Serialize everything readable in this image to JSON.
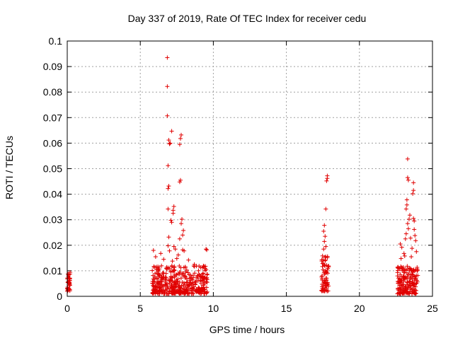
{
  "chart_data": {
    "type": "scatter",
    "title": "Day 337 of 2019, Rate Of TEC Index for receiver cedu",
    "xlabel": "GPS time / hours",
    "ylabel": "ROTI / TECUs",
    "xlim": [
      0,
      25
    ],
    "ylim": [
      0,
      0.1
    ],
    "x_ticks": [
      "0",
      "5",
      "10",
      "15",
      "20",
      "25"
    ],
    "y_ticks": [
      "0",
      "0.01",
      "0.02",
      "0.03",
      "0.04",
      "0.05",
      "0.06",
      "0.07",
      "0.08",
      "0.09",
      "0.1"
    ],
    "grid": true,
    "legend": "none",
    "marker": "+",
    "marker_color": "#e00000",
    "clusters": [
      {
        "x_range": [
          0.0,
          0.2
        ],
        "y_range": [
          0.002,
          0.0095
        ],
        "count": 40
      },
      {
        "x_range": [
          5.8,
          9.6
        ],
        "y_range": [
          0.001,
          0.012
        ],
        "count": 420
      },
      {
        "x_range": [
          17.4,
          17.9
        ],
        "y_range": [
          0.002,
          0.016
        ],
        "count": 70
      },
      {
        "x_range": [
          22.6,
          24.0
        ],
        "y_range": [
          0.001,
          0.012
        ],
        "count": 180
      }
    ],
    "points": [
      [
        6.85,
        0.0935
      ],
      [
        6.85,
        0.0822
      ],
      [
        6.85,
        0.0707
      ],
      [
        6.95,
        0.0612
      ],
      [
        7.0,
        0.0597
      ],
      [
        7.05,
        0.06
      ],
      [
        6.9,
        0.0512
      ],
      [
        6.95,
        0.0432
      ],
      [
        6.9,
        0.0422
      ],
      [
        7.15,
        0.0647
      ],
      [
        7.8,
        0.0632
      ],
      [
        7.75,
        0.0618
      ],
      [
        7.7,
        0.0595
      ],
      [
        7.7,
        0.0448
      ],
      [
        7.75,
        0.0455
      ],
      [
        6.9,
        0.0342
      ],
      [
        7.25,
        0.0337
      ],
      [
        7.25,
        0.0325
      ],
      [
        7.3,
        0.0352
      ],
      [
        7.1,
        0.0298
      ],
      [
        7.15,
        0.029
      ],
      [
        7.85,
        0.0302
      ],
      [
        7.8,
        0.0285
      ],
      [
        7.95,
        0.0258
      ],
      [
        7.9,
        0.024
      ],
      [
        6.95,
        0.0232
      ],
      [
        7.7,
        0.0225
      ],
      [
        6.9,
        0.0198
      ],
      [
        7.3,
        0.0195
      ],
      [
        7.4,
        0.0185
      ],
      [
        7.0,
        0.0178
      ],
      [
        7.9,
        0.0182
      ],
      [
        8.0,
        0.0178
      ],
      [
        9.5,
        0.0185
      ],
      [
        9.55,
        0.0182
      ],
      [
        5.9,
        0.018
      ],
      [
        6.05,
        0.0155
      ],
      [
        6.4,
        0.0168
      ],
      [
        6.6,
        0.0145
      ],
      [
        8.3,
        0.0142
      ],
      [
        8.7,
        0.0125
      ],
      [
        7.6,
        0.0162
      ],
      [
        7.5,
        0.0148
      ],
      [
        7.2,
        0.0138
      ],
      [
        17.8,
        0.0472
      ],
      [
        17.8,
        0.0462
      ],
      [
        17.75,
        0.0452
      ],
      [
        17.7,
        0.0342
      ],
      [
        17.6,
        0.0278
      ],
      [
        17.55,
        0.0255
      ],
      [
        17.65,
        0.0235
      ],
      [
        17.6,
        0.0215
      ],
      [
        17.7,
        0.0195
      ],
      [
        17.55,
        0.0185
      ],
      [
        23.3,
        0.0538
      ],
      [
        23.3,
        0.0465
      ],
      [
        23.35,
        0.0455
      ],
      [
        23.7,
        0.0445
      ],
      [
        23.7,
        0.0415
      ],
      [
        23.65,
        0.0402
      ],
      [
        23.25,
        0.0378
      ],
      [
        23.25,
        0.0358
      ],
      [
        23.2,
        0.0342
      ],
      [
        23.45,
        0.0318
      ],
      [
        23.4,
        0.0302
      ],
      [
        23.7,
        0.0305
      ],
      [
        23.75,
        0.0295
      ],
      [
        23.3,
        0.0285
      ],
      [
        23.35,
        0.0265
      ],
      [
        23.75,
        0.0262
      ],
      [
        23.8,
        0.0238
      ],
      [
        23.2,
        0.0245
      ],
      [
        23.15,
        0.0225
      ],
      [
        23.5,
        0.0228
      ],
      [
        23.85,
        0.0218
      ],
      [
        22.8,
        0.0205
      ],
      [
        22.9,
        0.0192
      ],
      [
        23.6,
        0.0188
      ],
      [
        23.9,
        0.0175
      ],
      [
        23.05,
        0.0168
      ],
      [
        23.1,
        0.0158
      ],
      [
        23.55,
        0.0155
      ],
      [
        22.85,
        0.0148
      ]
    ]
  }
}
